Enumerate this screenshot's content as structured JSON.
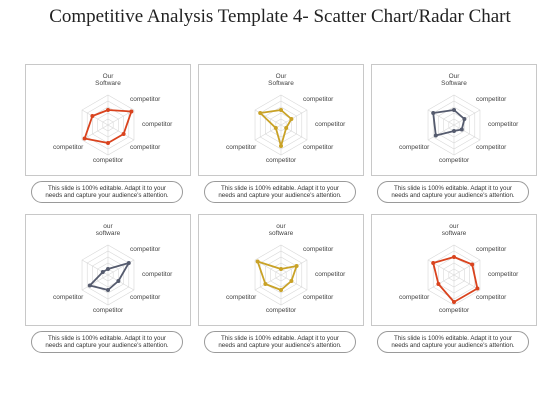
{
  "title": "Competitive Analysis Template 4- Scatter Chart/Radar Chart",
  "note_text": "This slide is 100% editable. Adapt it to your needs and capture your audience's attention.",
  "charts": [
    {
      "labels": [
        "Our Software",
        "competitor",
        "competitor",
        "competitor",
        "competitor",
        "competitor"
      ],
      "color": "#d9431e",
      "chart_data": {
        "type": "radar",
        "values": [
          2.5,
          4.5,
          3.0,
          3.0,
          4.5,
          3.0
        ],
        "rmax": 5
      }
    },
    {
      "labels": [
        "Our Software",
        "competitor",
        "competitor",
        "competitor",
        "competitor",
        "competitor"
      ],
      "color": "#c9a227",
      "chart_data": {
        "type": "radar",
        "values": [
          2.5,
          2.0,
          1.0,
          3.5,
          1.0,
          4.0
        ],
        "rmax": 5
      }
    },
    {
      "labels": [
        "Our Software",
        "competitor",
        "competitor",
        "competitor",
        "competitor",
        "competitor"
      ],
      "color": "#555b6e",
      "chart_data": {
        "type": "radar",
        "values": [
          2.5,
          2.0,
          1.5,
          1.0,
          3.5,
          4.0
        ],
        "rmax": 5
      }
    },
    {
      "labels": [
        "our software",
        "competitor",
        "competitor",
        "competitor",
        "competitor",
        "competitor"
      ],
      "color": "#555b6e",
      "chart_data": {
        "type": "radar",
        "values": [
          1.0,
          4.0,
          2.0,
          2.5,
          3.5,
          1.0
        ],
        "rmax": 5
      }
    },
    {
      "labels": [
        "our software",
        "competitor",
        "competitor",
        "competitor",
        "competitor",
        "competitor"
      ],
      "color": "#c9a227",
      "chart_data": {
        "type": "radar",
        "values": [
          1.0,
          3.0,
          2.0,
          2.5,
          3.0,
          4.5
        ],
        "rmax": 5
      }
    },
    {
      "labels": [
        "our software",
        "competitor",
        "competitor",
        "competitor",
        "competitor",
        "competitor"
      ],
      "color": "#d9431e",
      "chart_data": {
        "type": "radar",
        "values": [
          3.0,
          3.5,
          4.5,
          4.5,
          3.0,
          4.0
        ],
        "rmax": 5
      }
    }
  ]
}
